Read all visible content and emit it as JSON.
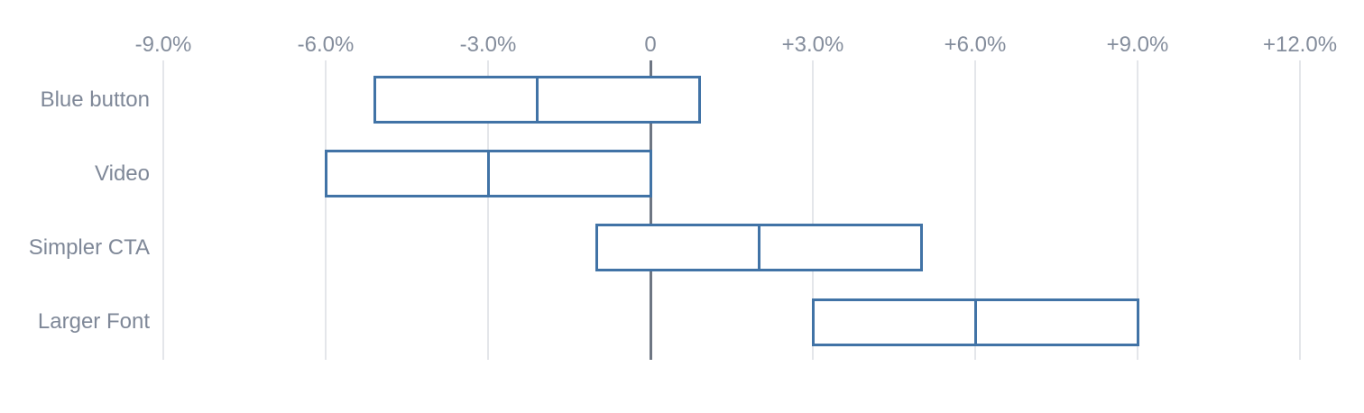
{
  "chart_data": {
    "type": "range-box",
    "orientation": "horizontal",
    "title": "",
    "xlabel": "",
    "ylabel": "",
    "categories": [
      "Blue button",
      "Video",
      "Simpler CTA",
      "Larger Font"
    ],
    "series": [
      {
        "name": "Blue button",
        "low": -5.1,
        "mid": -2.1,
        "high": 0.9
      },
      {
        "name": "Video",
        "low": -6.0,
        "mid": -3.0,
        "high": 0.0
      },
      {
        "name": "Simpler CTA",
        "low": -1.0,
        "mid": 2.0,
        "high": 5.0
      },
      {
        "name": "Larger Font",
        "low": 3.0,
        "mid": 6.0,
        "high": 9.0
      }
    ],
    "value_unit": "%",
    "x_axis": {
      "position": "top",
      "tick_values": [
        -9,
        -6,
        -3,
        0,
        3,
        6,
        9,
        12
      ],
      "tick_labels": [
        "-9.0%",
        "-6.0%",
        "-3.0%",
        "0",
        "+3.0%",
        "+6.0%",
        "+9.0%",
        "+12.0%"
      ]
    },
    "grid": true,
    "zero_line_emphasized": true,
    "legend": "none",
    "colors": {
      "box_border": "#4173a6",
      "box_fill": "#ffffff",
      "gridline": "#e4e6ea",
      "zero_line": "#6e7683",
      "axis_label": "#848d9c",
      "category_label": "#7f8898",
      "background": "#ffffff"
    }
  }
}
